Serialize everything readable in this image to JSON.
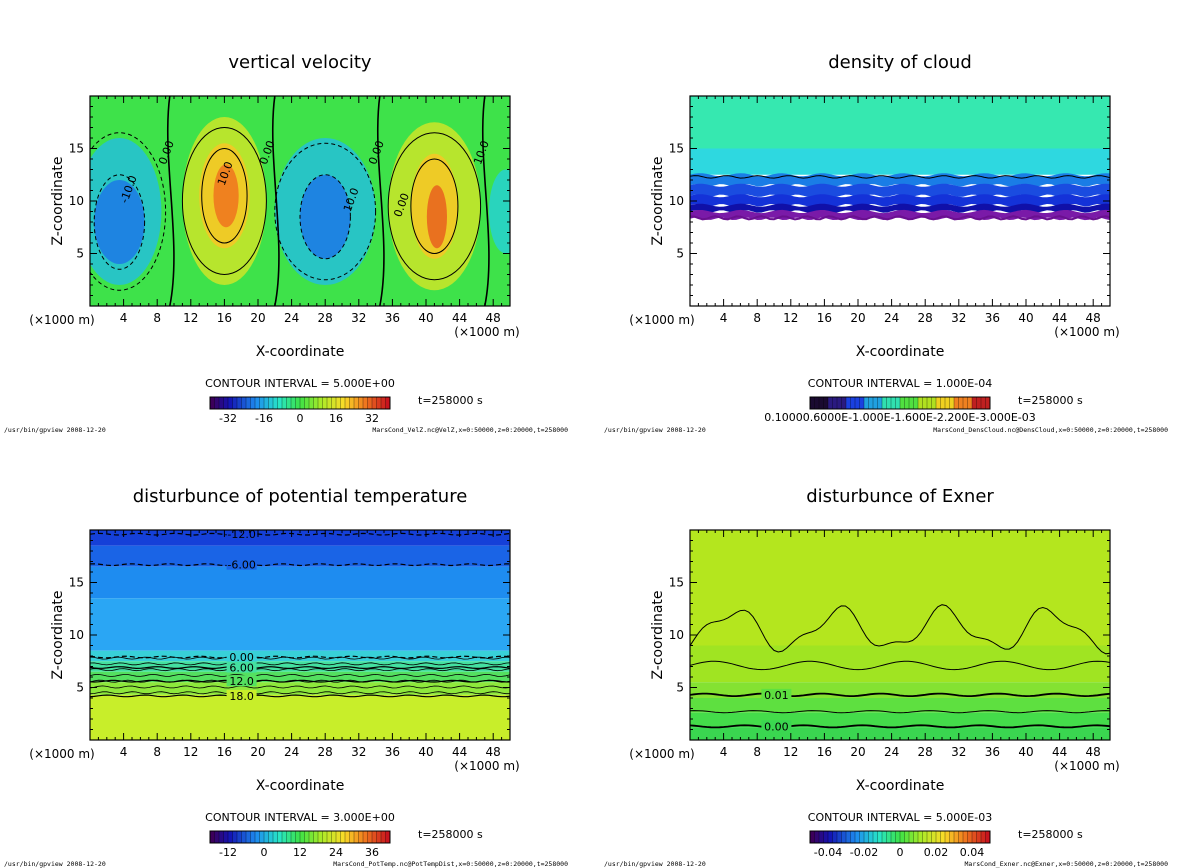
{
  "chart_data": [
    {
      "type": "heatmap",
      "id": "velz",
      "title": "vertical velocity",
      "xlabel": "X-coordinate",
      "ylabel": "Z-coordinate",
      "x_unit": "(×1000 m)",
      "xlim": [
        0,
        50
      ],
      "ylim": [
        0,
        20
      ],
      "xticks": [
        4,
        8,
        12,
        16,
        20,
        24,
        28,
        32,
        36,
        40,
        44,
        48
      ],
      "yticks": [
        5,
        10,
        15
      ],
      "contour_interval": "CONTOUR INTERVAL = 5.000E+00",
      "time": "t=258000 s",
      "colorbar_ticks": [
        "-32",
        "-16",
        "0",
        "16",
        "32"
      ],
      "colorbar_range": [
        -40,
        40
      ],
      "contour_labels": [
        "0.00",
        "-10.0",
        "10.0",
        "0.00",
        "0.00",
        "10.0",
        "0.00",
        "10.0",
        "0.00"
      ],
      "footer_left": "/usr/bin/gpview  2008-12-20",
      "footer_right": "MarsCond_VelZ.nc@VelZ,x=0:50000,z=0:20000,t=258000"
    },
    {
      "type": "heatmap",
      "id": "cloud",
      "title": "density of cloud",
      "xlabel": "X-coordinate",
      "ylabel": "Z-coordinate",
      "x_unit": "(×1000 m)",
      "xlim": [
        0,
        50
      ],
      "ylim": [
        0,
        20
      ],
      "xticks": [
        4,
        8,
        12,
        16,
        20,
        24,
        28,
        32,
        36,
        40,
        44,
        48
      ],
      "yticks": [
        5,
        10,
        15
      ],
      "contour_interval": "CONTOUR INTERVAL = 1.000E-04",
      "time": "t=258000 s",
      "colorbar_label": "0.10000.6000E-1.000E-1.600E-2.200E-3.000E-03",
      "footer_left": "/usr/bin/gpview  2008-12-20",
      "footer_right": "MarsCond_DensCloud.nc@DensCloud,x=0:50000,z=0:20000,t=258000"
    },
    {
      "type": "heatmap",
      "id": "pottemp",
      "title": "disturbunce of potential temperature",
      "xlabel": "X-coordinate",
      "ylabel": "Z-coordinate",
      "x_unit": "(×1000 m)",
      "xlim": [
        0,
        50
      ],
      "ylim": [
        0,
        20
      ],
      "xticks": [
        4,
        8,
        12,
        16,
        20,
        24,
        28,
        32,
        36,
        40,
        44,
        48
      ],
      "yticks": [
        5,
        10,
        15
      ],
      "contour_interval": "CONTOUR INTERVAL = 3.000E+00",
      "time": "t=258000 s",
      "colorbar_ticks": [
        "-12",
        "0",
        "12",
        "24",
        "36"
      ],
      "colorbar_range": [
        -18,
        42
      ],
      "contour_levels": [
        {
          "label": "-12.0",
          "z": 19.6
        },
        {
          "label": "-6.00",
          "z": 16.7
        },
        {
          "label": "0.00",
          "z": 7.9
        },
        {
          "label": "6.00",
          "z": 6.9
        },
        {
          "label": "12.0",
          "z": 5.6
        },
        {
          "label": "18.0",
          "z": 4.2
        }
      ],
      "footer_left": "/usr/bin/gpview  2008-12-20",
      "footer_right": "MarsCond_PotTemp.nc@PotTempDist,x=0:50000,z=0:20000,t=258000"
    },
    {
      "type": "heatmap",
      "id": "exner",
      "title": "disturbunce of Exner",
      "xlabel": "X-coordinate",
      "ylabel": "Z-coordinate",
      "x_unit": "(×1000 m)",
      "xlim": [
        0,
        50
      ],
      "ylim": [
        0,
        20
      ],
      "xticks": [
        4,
        8,
        12,
        16,
        20,
        24,
        28,
        32,
        36,
        40,
        44,
        48
      ],
      "yticks": [
        5,
        10,
        15
      ],
      "contour_interval": "CONTOUR INTERVAL = 5.000E-03",
      "time": "t=258000 s",
      "colorbar_ticks": [
        "-0.04",
        "-0.02",
        "0",
        "0.02",
        "0.04"
      ],
      "colorbar_range": [
        -0.05,
        0.05
      ],
      "contour_labels": [
        "0.01",
        "0.00"
      ],
      "footer_left": "/usr/bin/gpview  2008-12-20",
      "footer_right": "MarsCond_Exner.nc@Exner,x=0:50000,z=0:20000,t=258000"
    }
  ],
  "colors": {
    "field_green": "#3ee24a",
    "field_cyan": "#2fe8c0",
    "cloud_blue": "#1432d8",
    "cloud_purple": "#7a1aa8",
    "pot_blue": "#1e8cf0",
    "pot_yellowgreen": "#c8ee2a",
    "exner_yellowgreen": "#b4e61e"
  }
}
